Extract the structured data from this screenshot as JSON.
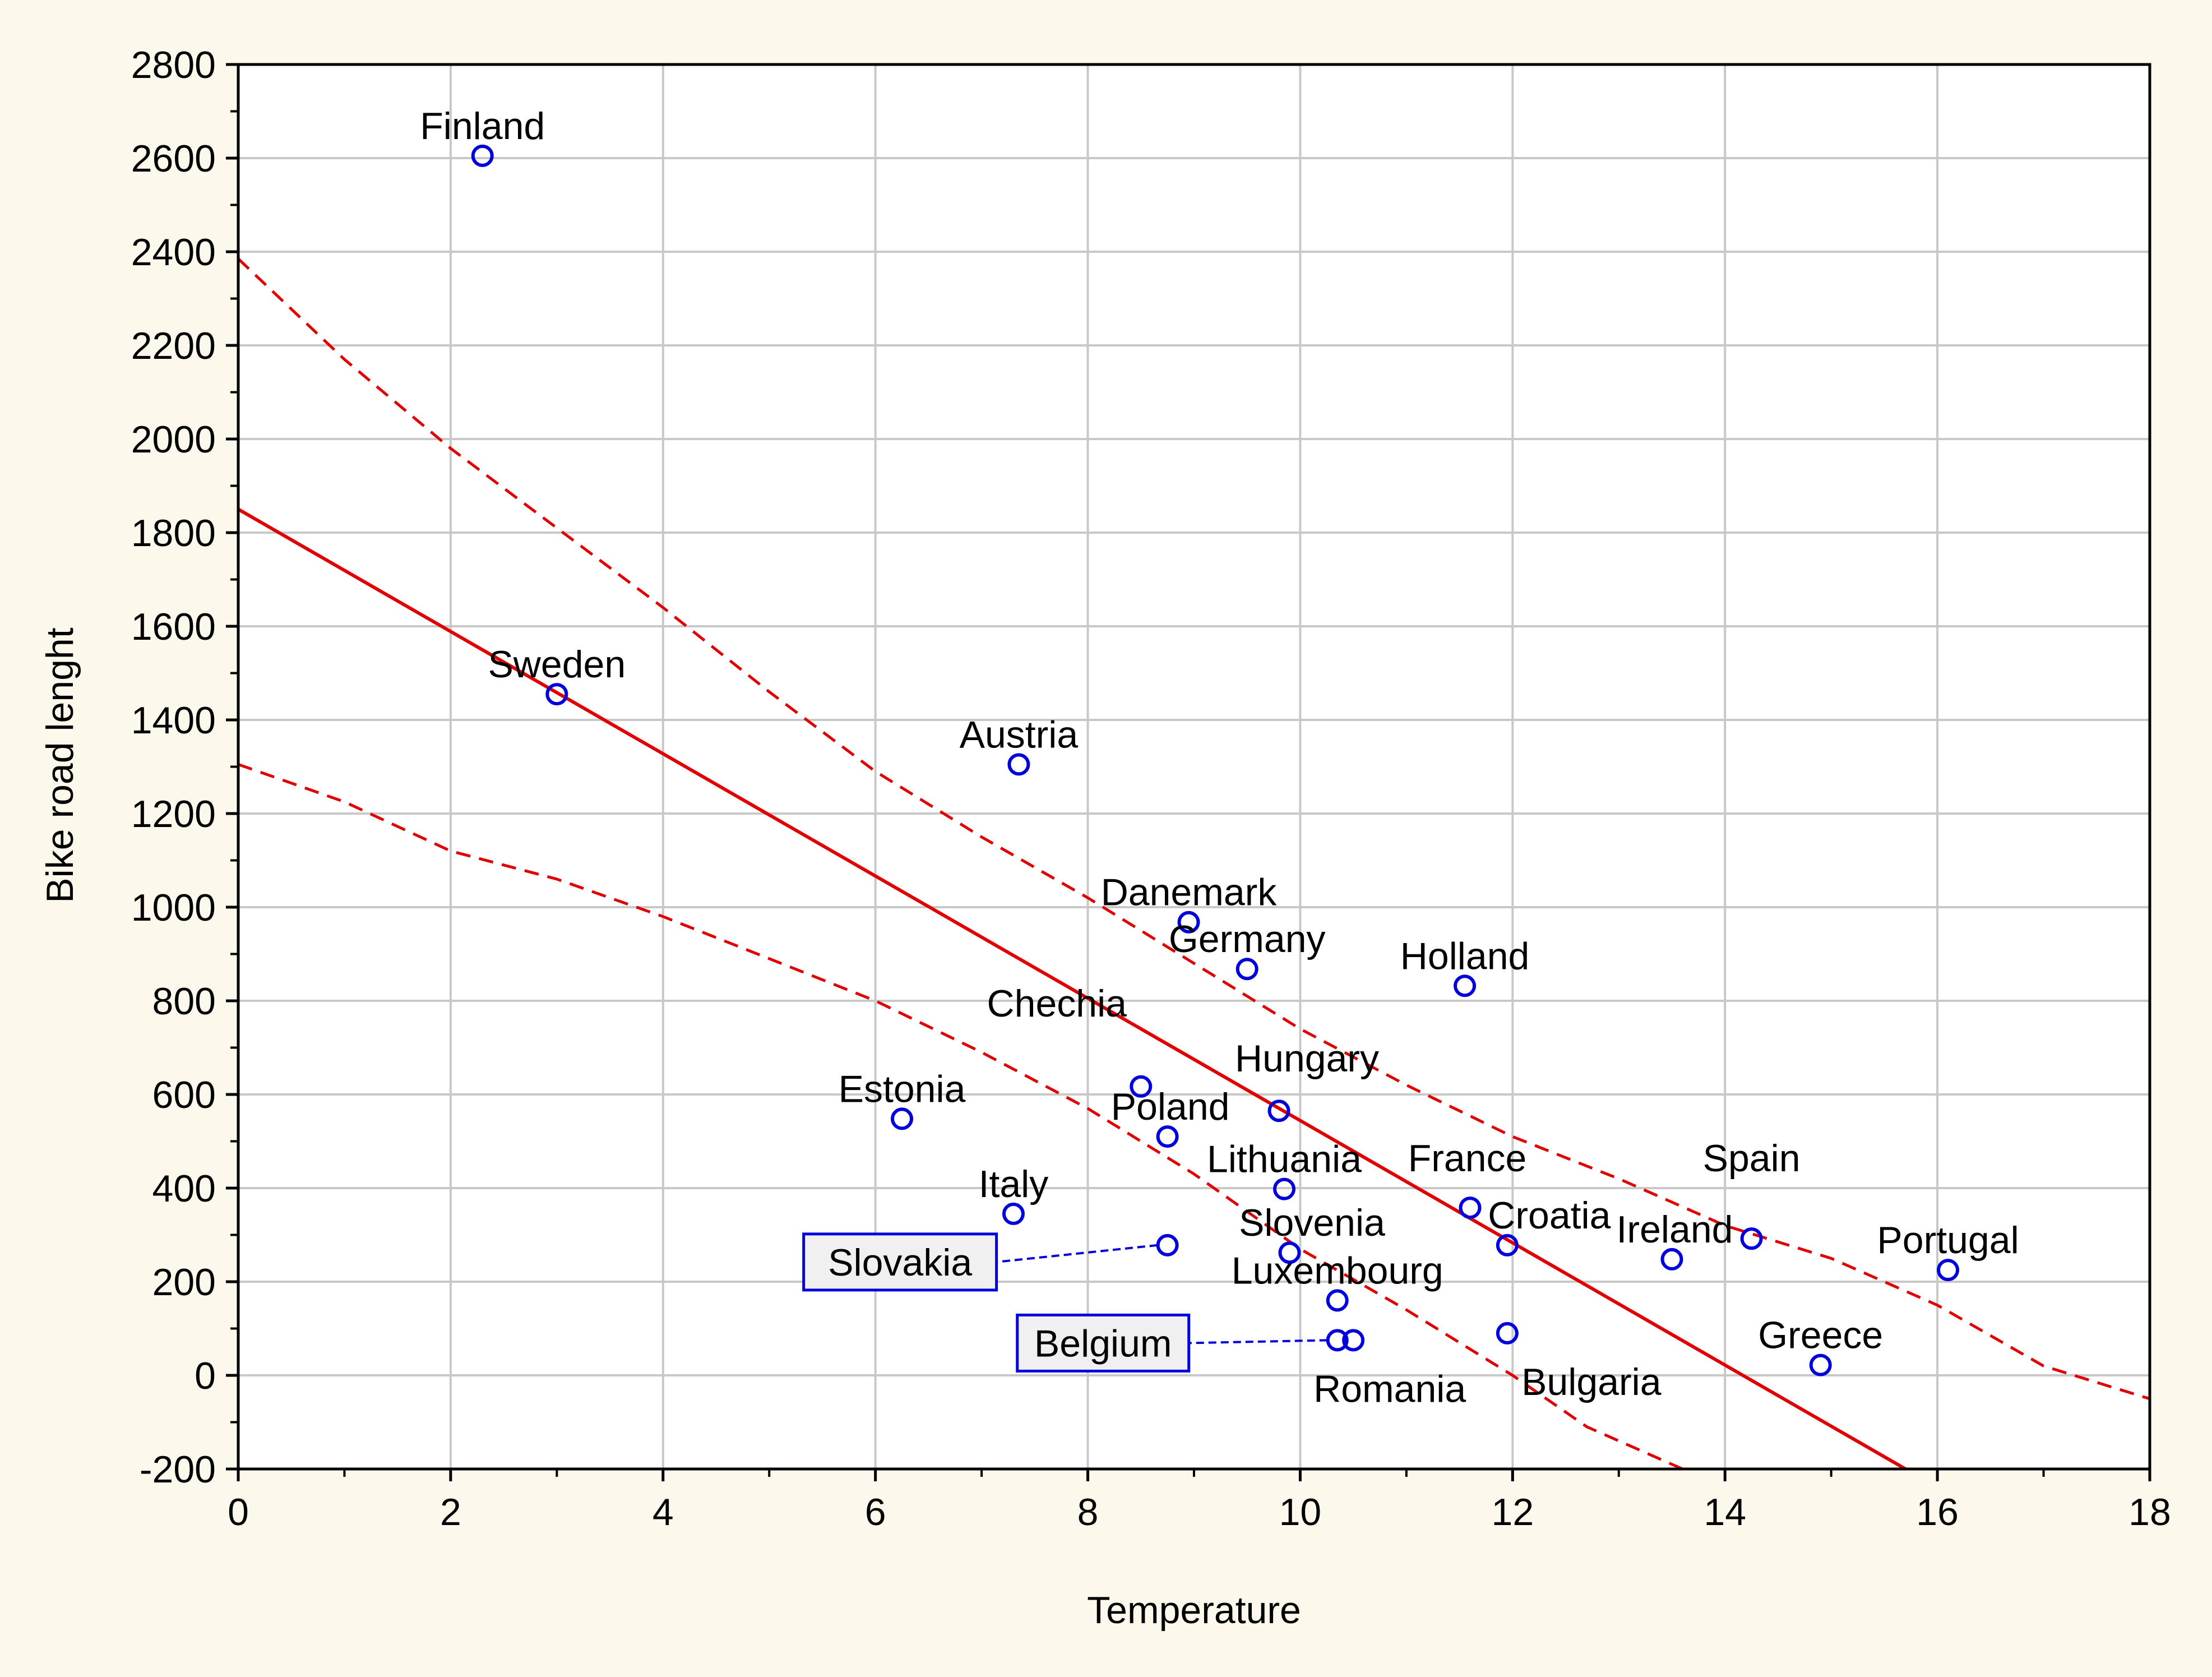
{
  "chart_data": {
    "type": "scatter",
    "title": "",
    "xlabel": "Temperature",
    "ylabel": "Bike road lenght",
    "xlim": [
      0,
      18
    ],
    "ylim": [
      -200,
      2800
    ],
    "x_ticks": [
      0,
      2,
      4,
      6,
      8,
      10,
      12,
      14,
      16,
      18
    ],
    "y_ticks": [
      -200,
      0,
      200,
      400,
      600,
      800,
      1000,
      1200,
      1400,
      1600,
      1800,
      2000,
      2200,
      2400,
      2600,
      2800
    ],
    "grid": true,
    "colors": {
      "points": "#0000dd",
      "fit": "#e00000",
      "grid": "#c8c8c8",
      "plot_bg": "#ffffff"
    },
    "points": [
      {
        "label": "Finland",
        "x": 2.3,
        "y": 2605
      },
      {
        "label": "Sweden",
        "x": 3.0,
        "y": 1455
      },
      {
        "label": "Austria",
        "x": 7.35,
        "y": 1305
      },
      {
        "label": "Danemark",
        "x": 8.95,
        "y": 968
      },
      {
        "label": "Germany",
        "x": 9.5,
        "y": 868
      },
      {
        "label": "Holland",
        "x": 11.55,
        "y": 832
      },
      {
        "label": "Chechia",
        "x": 8.5,
        "y": 617
      },
      {
        "label": "Hungary",
        "x": 9.8,
        "y": 565
      },
      {
        "label": "Estonia",
        "x": 6.25,
        "y": 548
      },
      {
        "label": "Poland",
        "x": 8.75,
        "y": 510
      },
      {
        "label": "Lithuania",
        "x": 9.85,
        "y": 398
      },
      {
        "label": "France",
        "x": 11.6,
        "y": 358
      },
      {
        "label": "Italy",
        "x": 7.3,
        "y": 345
      },
      {
        "label": "Croatia",
        "x": 11.95,
        "y": 278
      },
      {
        "label": "Spain",
        "x": 14.25,
        "y": 292
      },
      {
        "label": "Slovakia",
        "x": 8.75,
        "y": 278
      },
      {
        "label": "Slovenia",
        "x": 9.9,
        "y": 262
      },
      {
        "label": "Ireland",
        "x": 13.5,
        "y": 248
      },
      {
        "label": "Portugal",
        "x": 16.1,
        "y": 225
      },
      {
        "label": "Luxembourg",
        "x": 10.35,
        "y": 160
      },
      {
        "label": "Belgium",
        "x": 10.35,
        "y": 75
      },
      {
        "label": "Romania",
        "x": 10.5,
        "y": 75
      },
      {
        "label": "Bulgaria",
        "x": 11.95,
        "y": 90
      },
      {
        "label": "Greece",
        "x": 14.9,
        "y": 22
      }
    ],
    "fit_line": {
      "x": [
        0,
        15.7
      ],
      "y": [
        1850,
        -200
      ]
    },
    "confidence_upper": {
      "x": [
        0,
        1,
        2,
        3,
        4,
        5,
        6,
        7,
        8,
        9,
        10,
        11,
        12,
        13,
        14,
        15,
        16,
        17,
        18
      ],
      "y": [
        2385,
        2170,
        1980,
        1810,
        1640,
        1460,
        1290,
        1150,
        1020,
        880,
        740,
        620,
        510,
        420,
        320,
        250,
        150,
        20,
        -50
      ]
    },
    "confidence_lower": {
      "x": [
        0,
        1,
        2,
        3,
        4,
        5,
        6,
        7,
        8,
        9,
        10,
        11,
        12,
        12.7,
        13.7
      ],
      "y": [
        1305,
        1225,
        1120,
        1060,
        980,
        890,
        800,
        690,
        570,
        430,
        270,
        140,
        0,
        -110,
        -210
      ]
    }
  }
}
